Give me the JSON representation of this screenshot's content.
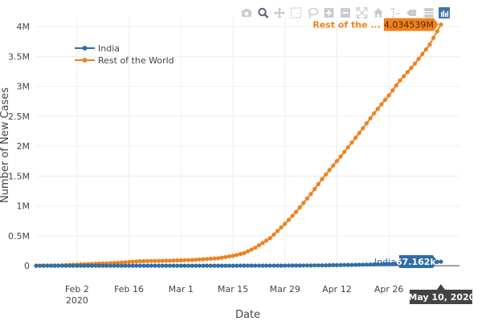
{
  "modebar": {
    "buttons": [
      "camera-icon",
      "zoom-icon",
      "pan-icon",
      "box-select-icon",
      "lasso-select-icon",
      "zoom-in-icon",
      "zoom-out-icon",
      "autoscale-icon",
      "reset-axes-icon",
      "spike-lines-icon",
      "hover-closest-icon",
      "hover-compare-icon",
      "plotly-logo-icon"
    ],
    "active_color": "#4472a8",
    "inactive_color": "#c8ccd2"
  },
  "hover": {
    "series0_label": "India",
    "series0_value": "67.162k",
    "series1_label": "Rest of the ...",
    "series1_value": "4.034539M",
    "x_label": "May 10, 2020"
  },
  "chart_data": {
    "type": "line",
    "xlabel": "Date",
    "ylabel": "Number of New Cases",
    "xlim": [
      "2020-01-22",
      "2020-05-15"
    ],
    "ylim": [
      -0.12,
      4.15
    ],
    "x_ticks": [
      {
        "date": "2020-02-02",
        "label": "Feb 2",
        "sublabel": "2020"
      },
      {
        "date": "2020-02-16",
        "label": "Feb 16",
        "sublabel": ""
      },
      {
        "date": "2020-03-01",
        "label": "Mar 1",
        "sublabel": ""
      },
      {
        "date": "2020-03-15",
        "label": "Mar 15",
        "sublabel": ""
      },
      {
        "date": "2020-03-29",
        "label": "Mar 29",
        "sublabel": ""
      },
      {
        "date": "2020-04-12",
        "label": "Apr 12",
        "sublabel": ""
      },
      {
        "date": "2020-04-26",
        "label": "Apr 26",
        "sublabel": ""
      }
    ],
    "y_ticks": [
      {
        "value": 0,
        "label": "0"
      },
      {
        "value": 0.5,
        "label": "0.5M"
      },
      {
        "value": 1,
        "label": "1M"
      },
      {
        "value": 1.5,
        "label": "1.5M"
      },
      {
        "value": 2,
        "label": "2M"
      },
      {
        "value": 2.5,
        "label": "2.5M"
      },
      {
        "value": 3,
        "label": "3M"
      },
      {
        "value": 3.5,
        "label": "3.5M"
      },
      {
        "value": 4,
        "label": "4M"
      }
    ],
    "legend_position": "top-left",
    "grid": true,
    "series": [
      {
        "name": "India",
        "color": "#2e6ea6",
        "x": [
          "2020-01-22",
          "2020-02-05",
          "2020-02-19",
          "2020-03-04",
          "2020-03-18",
          "2020-03-25",
          "2020-04-01",
          "2020-04-08",
          "2020-04-15",
          "2020-04-22",
          "2020-04-29",
          "2020-05-03",
          "2020-05-07",
          "2020-05-10"
        ],
        "values": [
          0,
          0,
          0,
          0,
          0.0002,
          0.0006,
          0.0019,
          0.0054,
          0.0124,
          0.0206,
          0.0333,
          0.0425,
          0.0528,
          0.0672
        ]
      },
      {
        "name": "Rest of the World",
        "color": "#f0821e",
        "x": [
          "2020-01-22",
          "2020-01-29",
          "2020-02-05",
          "2020-02-12",
          "2020-02-19",
          "2020-02-26",
          "2020-03-04",
          "2020-03-11",
          "2020-03-15",
          "2020-03-18",
          "2020-03-21",
          "2020-03-25",
          "2020-03-29",
          "2020-04-01",
          "2020-04-05",
          "2020-04-08",
          "2020-04-12",
          "2020-04-15",
          "2020-04-19",
          "2020-04-22",
          "2020-04-26",
          "2020-04-29",
          "2020-05-03",
          "2020-05-07",
          "2020-05-10"
        ],
        "values": [
          0.0005,
          0.006,
          0.028,
          0.045,
          0.075,
          0.083,
          0.095,
          0.125,
          0.165,
          0.21,
          0.3,
          0.46,
          0.7,
          0.9,
          1.2,
          1.45,
          1.75,
          1.98,
          2.3,
          2.55,
          2.85,
          3.1,
          3.38,
          3.7,
          4.034539
        ]
      }
    ]
  }
}
